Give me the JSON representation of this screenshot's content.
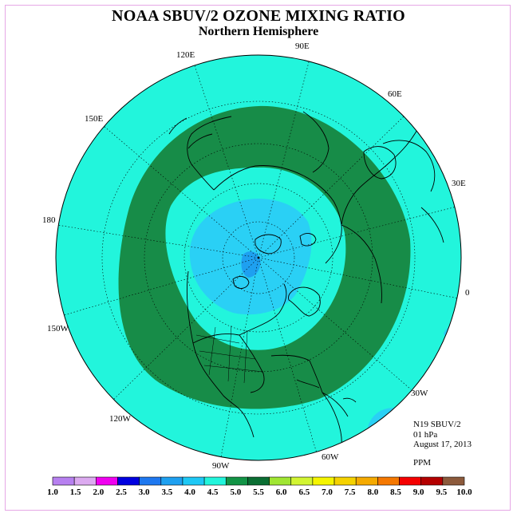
{
  "title": "NOAA SBUV/2 OZONE MIXING RATIO",
  "subtitle": "Northern Hemisphere",
  "longitude_labels": [
    "90E",
    "60E",
    "30E",
    "0",
    "30W",
    "60W",
    "90W",
    "120W",
    "150W",
    "180",
    "150E",
    "120E"
  ],
  "info": {
    "instrument": "N19 SBUV/2",
    "level": "01 hPa",
    "date": "August 17, 2013"
  },
  "units": "PPM",
  "colorbar": {
    "ticks": [
      "1.0",
      "1.5",
      "2.0",
      "2.5",
      "3.0",
      "3.5",
      "4.0",
      "4.5",
      "5.0",
      "5.5",
      "6.0",
      "6.5",
      "7.0",
      "7.5",
      "8.0",
      "8.5",
      "9.0",
      "9.5",
      "10.0"
    ],
    "colors": [
      "#b780f0",
      "#dcaaf0",
      "#f000f0",
      "#0000e0",
      "#1e78f0",
      "#1ea0f0",
      "#1ec8f5",
      "#22f5dc",
      "#129446",
      "#0a6e32",
      "#a0e632",
      "#d2f532",
      "#f5f500",
      "#f5d200",
      "#f5aa00",
      "#f57800",
      "#f50000",
      "#b40000",
      "#8c5a3c"
    ]
  },
  "legend_colors": {
    "background": "#22f5dc",
    "band_5_5": "#178c48",
    "core_4_0": "#2ad0f5",
    "peak_3_5": "#1ea0f0"
  }
}
